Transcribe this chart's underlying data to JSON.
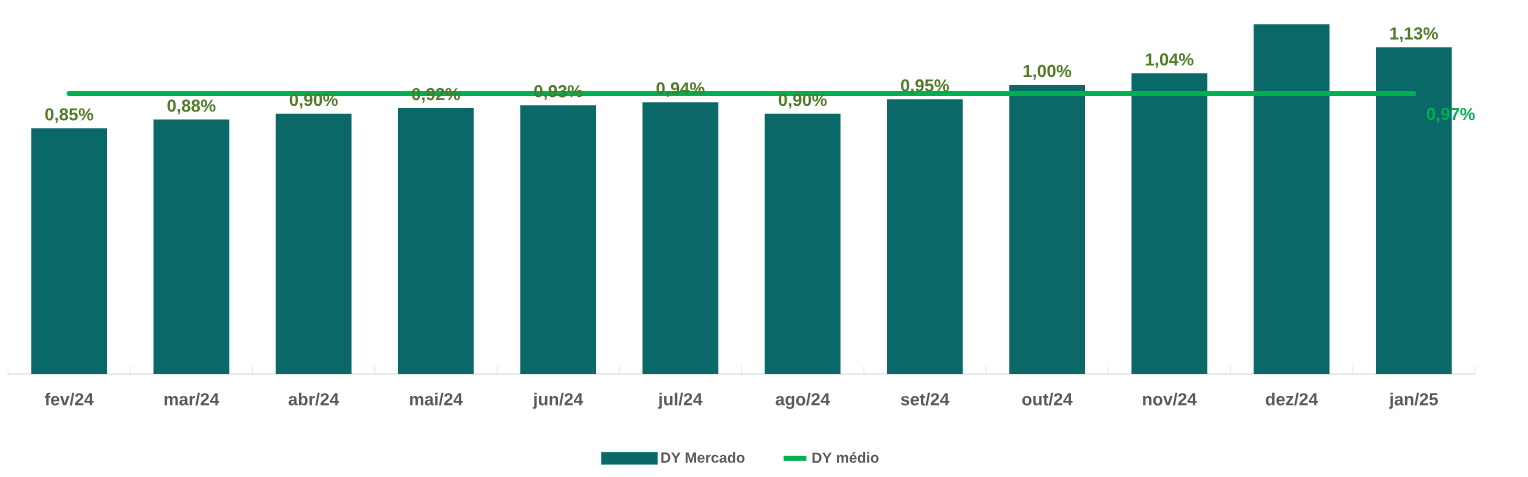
{
  "chart_data": {
    "type": "bar",
    "categories": [
      "fev/24",
      "mar/24",
      "abr/24",
      "mai/24",
      "jun/24",
      "jul/24",
      "ago/24",
      "set/24",
      "out/24",
      "nov/24",
      "dez/24",
      "jan/25"
    ],
    "series": [
      {
        "name": "DY Mercado",
        "color": "#0a6868",
        "values": [
          0.85,
          0.88,
          0.9,
          0.92,
          0.93,
          0.94,
          0.9,
          0.95,
          1.0,
          1.04,
          1.21,
          1.13
        ],
        "value_labels": [
          "0,85%",
          "0,88%",
          "0,90%",
          "0,92%",
          "0,93%",
          "0,94%",
          "0,90%",
          "0,95%",
          "1,00%",
          "1,04%",
          null,
          "1,13%"
        ]
      },
      {
        "name": "DY médio",
        "type": "line",
        "color": "#00b050",
        "values": [
          0.97,
          0.97,
          0.97,
          0.97,
          0.97,
          0.97,
          0.97,
          0.97,
          0.97,
          0.97,
          0.97,
          0.97
        ],
        "value_labels": [
          null,
          null,
          null,
          null,
          null,
          null,
          null,
          null,
          null,
          null,
          null,
          "0,97%"
        ]
      }
    ],
    "legend": "bottom"
  }
}
